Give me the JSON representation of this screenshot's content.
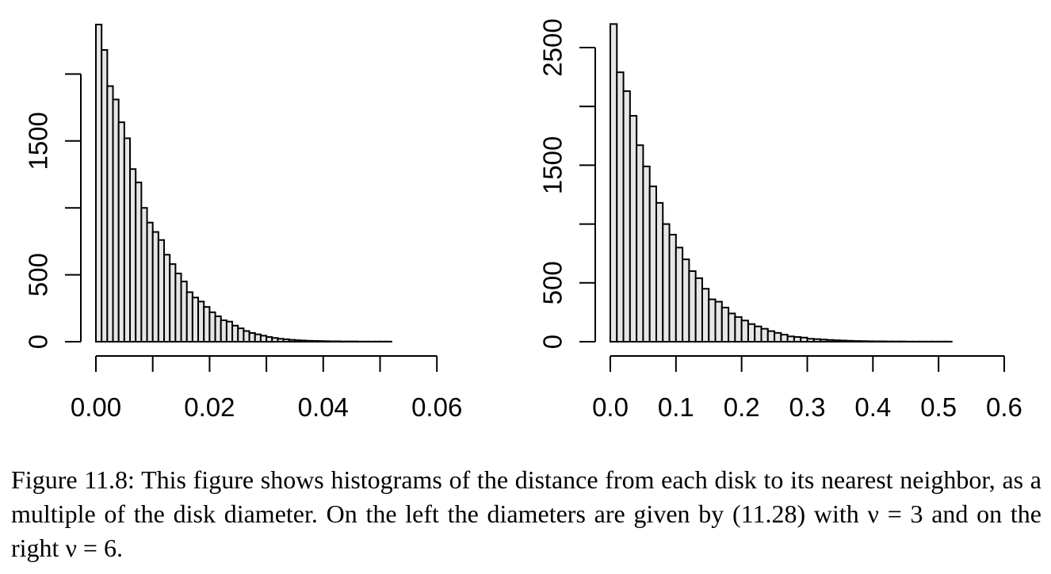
{
  "caption": {
    "label": "Figure 11.8:",
    "text": "This figure shows histograms of the distance from each disk to its nearest neighbor, as a multiple of the disk diameter. On the left the diameters are given by (11.28) with ν = 3 and on the right ν = 6."
  },
  "chart_data": [
    {
      "type": "bar",
      "subtype": "histogram",
      "title": "",
      "xlabel": "",
      "ylabel": "",
      "bin_width": 0.001,
      "bin_start": 0.0,
      "xlim": [
        0.0,
        0.067
      ],
      "ylim": [
        0,
        2000
      ],
      "x_ticks": [
        0.0,
        0.01,
        0.02,
        0.03,
        0.04,
        0.05,
        0.06
      ],
      "x_tick_labels": [
        "0.00",
        "",
        "0.02",
        "",
        "0.04",
        "",
        "0.06"
      ],
      "y_ticks": [
        0,
        500,
        1000,
        1500,
        2000
      ],
      "y_tick_labels": [
        "0",
        "500",
        "",
        "1500",
        ""
      ],
      "grid": false,
      "values": [
        2370,
        2180,
        1910,
        1810,
        1640,
        1520,
        1290,
        1190,
        1000,
        890,
        820,
        760,
        650,
        580,
        510,
        450,
        370,
        330,
        300,
        260,
        220,
        190,
        160,
        150,
        120,
        100,
        80,
        65,
        55,
        45,
        35,
        28,
        22,
        18,
        14,
        11,
        9,
        7,
        6,
        5,
        4,
        3,
        3,
        2,
        2,
        2,
        1,
        1,
        1,
        1,
        1,
        1,
        0,
        0,
        0,
        0,
        0,
        0,
        0,
        0,
        0,
        0,
        0,
        0,
        0,
        0,
        0
      ]
    },
    {
      "type": "bar",
      "subtype": "histogram",
      "title": "",
      "xlabel": "",
      "ylabel": "",
      "bin_width": 0.01,
      "bin_start": 0.0,
      "xlim": [
        0.0,
        0.58
      ],
      "ylim": [
        0,
        2500
      ],
      "x_ticks": [
        0.0,
        0.1,
        0.2,
        0.3,
        0.4,
        0.5,
        0.6
      ],
      "x_tick_labels": [
        "0.0",
        "0.1",
        "0.2",
        "0.3",
        "0.4",
        "0.5",
        "0.6"
      ],
      "y_ticks": [
        0,
        500,
        1000,
        1500,
        2000,
        2500
      ],
      "y_tick_labels": [
        "0",
        "500",
        "",
        "1500",
        "",
        "2500"
      ],
      "grid": false,
      "values": [
        2700,
        2290,
        2130,
        1920,
        1670,
        1490,
        1320,
        1180,
        1000,
        910,
        800,
        700,
        600,
        540,
        450,
        360,
        340,
        290,
        240,
        210,
        180,
        150,
        130,
        110,
        90,
        75,
        60,
        45,
        40,
        35,
        25,
        22,
        18,
        15,
        12,
        10,
        8,
        6,
        5,
        4,
        3,
        3,
        2,
        2,
        2,
        1,
        1,
        1,
        1,
        1,
        1,
        1,
        0,
        0,
        0,
        0,
        0,
        0
      ]
    }
  ]
}
